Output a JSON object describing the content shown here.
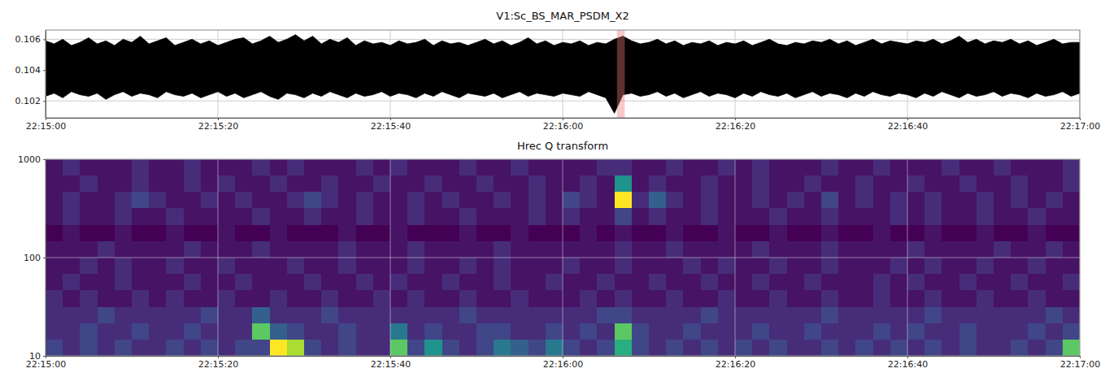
{
  "chart_data": [
    {
      "type": "area",
      "title": "V1:Sc_BS_MAR_PSDM_X2",
      "color": "#000000",
      "x": [
        0,
        1,
        2,
        3,
        4,
        5,
        6,
        7,
        8,
        9,
        10,
        11,
        12,
        13,
        14,
        15,
        16,
        17,
        18,
        19,
        20,
        21,
        22,
        23,
        24,
        25,
        26,
        27,
        28,
        29,
        30,
        31,
        32,
        33,
        34,
        35,
        36,
        37,
        38,
        39,
        40,
        41,
        42,
        43,
        44,
        45,
        46,
        47,
        48,
        49,
        50,
        51,
        52,
        53,
        54,
        55,
        56,
        57,
        58,
        59,
        60,
        61,
        62,
        63,
        64,
        65,
        66,
        67,
        68,
        69,
        70,
        71,
        72,
        73,
        74,
        75,
        76,
        77,
        78,
        79,
        80,
        81,
        82,
        83,
        84,
        85,
        86,
        87,
        88,
        89,
        90,
        91,
        92,
        93,
        94,
        95,
        96,
        97,
        98,
        99,
        100,
        101,
        102,
        103,
        104,
        105,
        106,
        107,
        108,
        109,
        110,
        111,
        112,
        113,
        114,
        115,
        116,
        117,
        118,
        119,
        120
      ],
      "ymin": [
        0.1023,
        0.1025,
        0.1022,
        0.1026,
        0.1024,
        0.1023,
        0.1025,
        0.1021,
        0.1024,
        0.1026,
        0.1023,
        0.1025,
        0.1024,
        0.1022,
        0.1026,
        0.1024,
        0.1023,
        0.1025,
        0.1022,
        0.1024,
        0.1026,
        0.1023,
        0.1025,
        0.1022,
        0.1024,
        0.1026,
        0.1023,
        0.1021,
        0.1025,
        0.1024,
        0.1022,
        0.1025,
        0.1023,
        0.1026,
        0.1024,
        0.1022,
        0.1025,
        0.1023,
        0.1024,
        0.1026,
        0.1023,
        0.1025,
        0.1024,
        0.1022,
        0.1025,
        0.1023,
        0.1026,
        0.1024,
        0.1022,
        0.1025,
        0.1024,
        0.1023,
        0.1025,
        0.1022,
        0.1024,
        0.1026,
        0.1023,
        0.1025,
        0.1024,
        0.1023,
        0.1025,
        0.1024,
        0.1023,
        0.1026,
        0.1024,
        0.1022,
        0.1012,
        0.1024,
        0.1025,
        0.1023,
        0.1024,
        0.1026,
        0.1023,
        0.1025,
        0.1022,
        0.1024,
        0.1026,
        0.1023,
        0.1025,
        0.1024,
        0.1022,
        0.1025,
        0.1023,
        0.1026,
        0.1024,
        0.1023,
        0.1025,
        0.1022,
        0.1024,
        0.1026,
        0.1023,
        0.1025,
        0.1024,
        0.1022,
        0.1025,
        0.1023,
        0.1026,
        0.1024,
        0.1023,
        0.1025,
        0.1024,
        0.1022,
        0.1025,
        0.1023,
        0.1026,
        0.1024,
        0.1022,
        0.1025,
        0.1023,
        0.1024,
        0.1026,
        0.1023,
        0.1025,
        0.1024,
        0.1022,
        0.1025,
        0.1023,
        0.1024,
        0.1026,
        0.1023,
        0.1025
      ],
      "ymax": [
        0.1059,
        0.1057,
        0.106,
        0.1056,
        0.1058,
        0.1061,
        0.1057,
        0.1059,
        0.1056,
        0.106,
        0.1058,
        0.1062,
        0.1057,
        0.1059,
        0.1061,
        0.1056,
        0.1058,
        0.106,
        0.1057,
        0.1059,
        0.1056,
        0.1058,
        0.106,
        0.1061,
        0.1057,
        0.1059,
        0.1062,
        0.1058,
        0.106,
        0.1063,
        0.1059,
        0.1062,
        0.1057,
        0.106,
        0.1058,
        0.1061,
        0.1056,
        0.1059,
        0.1057,
        0.1058,
        0.1056,
        0.1059,
        0.1057,
        0.1058,
        0.106,
        0.1056,
        0.1059,
        0.1057,
        0.1058,
        0.1056,
        0.1058,
        0.106,
        0.1057,
        0.1059,
        0.1056,
        0.1058,
        0.1061,
        0.1057,
        0.1059,
        0.1056,
        0.1058,
        0.1057,
        0.1059,
        0.1056,
        0.1058,
        0.1057,
        0.106,
        0.1062,
        0.1059,
        0.1057,
        0.1058,
        0.106,
        0.1057,
        0.1059,
        0.1056,
        0.1058,
        0.1057,
        0.1059,
        0.1056,
        0.1058,
        0.1057,
        0.1059,
        0.1056,
        0.1058,
        0.106,
        0.1057,
        0.1056,
        0.1058,
        0.1057,
        0.1059,
        0.1058,
        0.106,
        0.1057,
        0.1059,
        0.1056,
        0.1058,
        0.106,
        0.1057,
        0.1059,
        0.1058,
        0.1057,
        0.1059,
        0.1058,
        0.106,
        0.1057,
        0.1059,
        0.1062,
        0.1058,
        0.106,
        0.1057,
        0.1059,
        0.1058,
        0.106,
        0.1057,
        0.1059,
        0.1056,
        0.1058,
        0.106,
        0.1057,
        0.1058,
        0.1058
      ],
      "highlight": [
        66.3,
        67.2
      ],
      "xlim": [
        0,
        120
      ],
      "xticks": [
        {
          "value": 0,
          "label": "22:15:00"
        },
        {
          "value": 20,
          "label": "22:15:20"
        },
        {
          "value": 40,
          "label": "22:15:40"
        },
        {
          "value": 60,
          "label": "22:16:00"
        },
        {
          "value": 80,
          "label": "22:16:20"
        },
        {
          "value": 100,
          "label": "22:16:40"
        },
        {
          "value": 120,
          "label": "22:17:00"
        }
      ],
      "ylim": [
        0.1009,
        0.1066
      ],
      "yticks": [
        0.102,
        0.104,
        0.106
      ],
      "grid": true
    },
    {
      "type": "heatmap",
      "title": "Hrec Q transform",
      "x_edges": [
        0,
        2,
        4,
        6,
        8,
        10,
        12,
        14,
        16,
        18,
        20,
        22,
        24,
        26,
        28,
        30,
        32,
        34,
        36,
        38,
        40,
        42,
        44,
        46,
        48,
        50,
        52,
        54,
        56,
        58,
        60,
        62,
        64,
        66,
        68,
        70,
        72,
        74,
        76,
        78,
        80,
        82,
        84,
        86,
        88,
        90,
        92,
        94,
        96,
        98,
        100,
        102,
        104,
        106,
        108,
        110,
        112,
        114,
        116,
        118,
        120
      ],
      "y_edges": [
        10,
        14.68,
        21.54,
        31.62,
        46.42,
        68.13,
        100,
        146.78,
        215.44,
        316.23,
        464.16,
        681.29,
        1000
      ],
      "cells": [
        [
          3,
          2,
          3,
          2,
          3,
          2,
          2,
          3,
          2,
          3,
          2,
          3,
          3,
          10,
          9,
          3,
          2,
          3,
          2,
          2,
          8,
          3,
          6,
          3,
          2,
          3,
          5,
          4,
          3,
          5,
          3,
          2,
          3,
          7,
          3,
          2,
          3,
          2,
          3,
          2,
          3,
          2,
          3,
          2,
          2,
          3,
          2,
          3,
          2,
          3,
          2,
          3,
          2,
          3,
          2,
          2,
          3,
          2,
          3,
          8
        ],
        [
          2,
          2,
          3,
          2,
          2,
          3,
          2,
          2,
          3,
          2,
          2,
          2,
          8,
          4,
          3,
          2,
          2,
          3,
          2,
          2,
          5,
          2,
          3,
          2,
          2,
          3,
          3,
          2,
          2,
          3,
          2,
          3,
          2,
          8,
          3,
          2,
          2,
          3,
          2,
          2,
          2,
          3,
          2,
          2,
          3,
          2,
          2,
          2,
          3,
          2,
          3,
          2,
          2,
          3,
          2,
          2,
          2,
          3,
          2,
          3
        ],
        [
          2,
          2,
          2,
          3,
          2,
          2,
          2,
          2,
          2,
          3,
          2,
          2,
          4,
          2,
          2,
          2,
          3,
          2,
          2,
          2,
          2,
          2,
          2,
          2,
          3,
          2,
          2,
          2,
          2,
          2,
          2,
          2,
          3,
          3,
          2,
          2,
          2,
          2,
          3,
          2,
          2,
          2,
          2,
          2,
          2,
          3,
          2,
          2,
          2,
          2,
          2,
          3,
          2,
          2,
          2,
          2,
          2,
          2,
          3,
          2
        ],
        [
          2,
          1,
          2,
          1,
          1,
          2,
          1,
          2,
          1,
          1,
          2,
          1,
          1,
          2,
          1,
          1,
          2,
          1,
          1,
          2,
          1,
          2,
          1,
          1,
          2,
          1,
          1,
          2,
          1,
          1,
          1,
          2,
          1,
          2,
          1,
          1,
          2,
          1,
          1,
          2,
          1,
          1,
          2,
          1,
          1,
          2,
          1,
          1,
          2,
          1,
          1,
          2,
          1,
          1,
          2,
          1,
          1,
          2,
          1,
          1
        ],
        [
          1,
          2,
          1,
          1,
          2,
          1,
          1,
          1,
          2,
          1,
          1,
          2,
          1,
          1,
          1,
          2,
          1,
          1,
          2,
          1,
          2,
          1,
          1,
          2,
          1,
          1,
          2,
          1,
          1,
          2,
          1,
          1,
          2,
          1,
          1,
          2,
          1,
          1,
          2,
          1,
          1,
          2,
          1,
          1,
          2,
          1,
          1,
          1,
          2,
          1,
          2,
          1,
          1,
          2,
          1,
          1,
          2,
          1,
          1,
          2
        ],
        [
          1,
          1,
          2,
          1,
          2,
          1,
          1,
          2,
          1,
          1,
          2,
          1,
          1,
          1,
          2,
          1,
          1,
          2,
          1,
          1,
          1,
          2,
          1,
          1,
          2,
          1,
          2,
          1,
          1,
          1,
          2,
          1,
          1,
          2,
          1,
          1,
          1,
          2,
          1,
          2,
          1,
          1,
          2,
          1,
          1,
          2,
          1,
          1,
          1,
          2,
          1,
          2,
          1,
          1,
          2,
          1,
          1,
          2,
          1,
          1
        ],
        [
          1,
          1,
          1,
          2,
          1,
          1,
          1,
          1,
          2,
          1,
          1,
          1,
          2,
          1,
          1,
          1,
          1,
          2,
          1,
          1,
          1,
          2,
          1,
          1,
          1,
          1,
          2,
          1,
          1,
          1,
          1,
          1,
          1,
          2,
          1,
          1,
          2,
          1,
          1,
          1,
          1,
          2,
          1,
          1,
          1,
          2,
          1,
          1,
          1,
          1,
          2,
          1,
          1,
          1,
          1,
          2,
          1,
          1,
          2,
          1
        ],
        [
          0,
          1,
          0,
          0,
          1,
          0,
          0,
          1,
          0,
          0,
          1,
          0,
          0,
          1,
          0,
          0,
          0,
          1,
          0,
          0,
          1,
          0,
          0,
          0,
          1,
          0,
          0,
          1,
          0,
          0,
          0,
          1,
          0,
          1,
          0,
          0,
          1,
          0,
          0,
          1,
          0,
          0,
          1,
          0,
          0,
          1,
          0,
          0,
          1,
          0,
          0,
          1,
          0,
          0,
          1,
          0,
          0,
          1,
          0,
          0
        ],
        [
          1,
          2,
          1,
          1,
          2,
          1,
          1,
          2,
          1,
          1,
          1,
          1,
          2,
          1,
          1,
          2,
          1,
          1,
          2,
          1,
          1,
          2,
          1,
          1,
          2,
          1,
          1,
          1,
          2,
          1,
          2,
          1,
          1,
          3,
          1,
          2,
          1,
          1,
          2,
          1,
          1,
          1,
          2,
          1,
          1,
          2,
          1,
          1,
          1,
          2,
          1,
          2,
          1,
          1,
          2,
          1,
          1,
          2,
          1,
          1
        ],
        [
          1,
          2,
          1,
          1,
          2,
          3,
          2,
          1,
          1,
          2,
          1,
          2,
          1,
          1,
          2,
          3,
          2,
          1,
          2,
          1,
          1,
          2,
          1,
          2,
          1,
          1,
          2,
          1,
          2,
          1,
          3,
          2,
          1,
          10,
          2,
          4,
          2,
          1,
          2,
          1,
          1,
          2,
          1,
          2,
          1,
          3,
          1,
          2,
          1,
          2,
          1,
          2,
          1,
          1,
          2,
          1,
          2,
          1,
          2,
          1
        ],
        [
          1,
          1,
          2,
          1,
          1,
          2,
          1,
          1,
          2,
          1,
          2,
          1,
          1,
          2,
          1,
          1,
          2,
          1,
          1,
          2,
          1,
          1,
          2,
          1,
          1,
          2,
          1,
          1,
          2,
          1,
          1,
          2,
          1,
          6,
          1,
          2,
          1,
          1,
          2,
          1,
          1,
          2,
          1,
          1,
          2,
          1,
          1,
          2,
          1,
          1,
          2,
          1,
          1,
          2,
          1,
          1,
          2,
          1,
          1,
          2
        ],
        [
          1,
          2,
          1,
          1,
          1,
          2,
          1,
          1,
          2,
          1,
          1,
          1,
          2,
          1,
          2,
          1,
          1,
          1,
          2,
          1,
          2,
          1,
          1,
          1,
          2,
          1,
          1,
          2,
          1,
          1,
          1,
          1,
          2,
          2,
          1,
          1,
          2,
          1,
          1,
          2,
          1,
          2,
          1,
          1,
          1,
          2,
          1,
          1,
          2,
          1,
          1,
          1,
          2,
          1,
          1,
          2,
          1,
          1,
          1,
          2
        ]
      ],
      "zlim": [
        0,
        10
      ],
      "xlim": [
        0,
        120
      ],
      "xticks": [
        {
          "value": 0,
          "label": "22:15:00"
        },
        {
          "value": 20,
          "label": "22:15:20"
        },
        {
          "value": 40,
          "label": "22:15:40"
        },
        {
          "value": 60,
          "label": "22:16:00"
        },
        {
          "value": 80,
          "label": "22:16:20"
        },
        {
          "value": 100,
          "label": "22:16:40"
        },
        {
          "value": 120,
          "label": "22:17:00"
        }
      ],
      "ylim": [
        10,
        1000
      ],
      "yticks": [
        10,
        100,
        1000
      ],
      "log": "y",
      "grid": true
    }
  ]
}
